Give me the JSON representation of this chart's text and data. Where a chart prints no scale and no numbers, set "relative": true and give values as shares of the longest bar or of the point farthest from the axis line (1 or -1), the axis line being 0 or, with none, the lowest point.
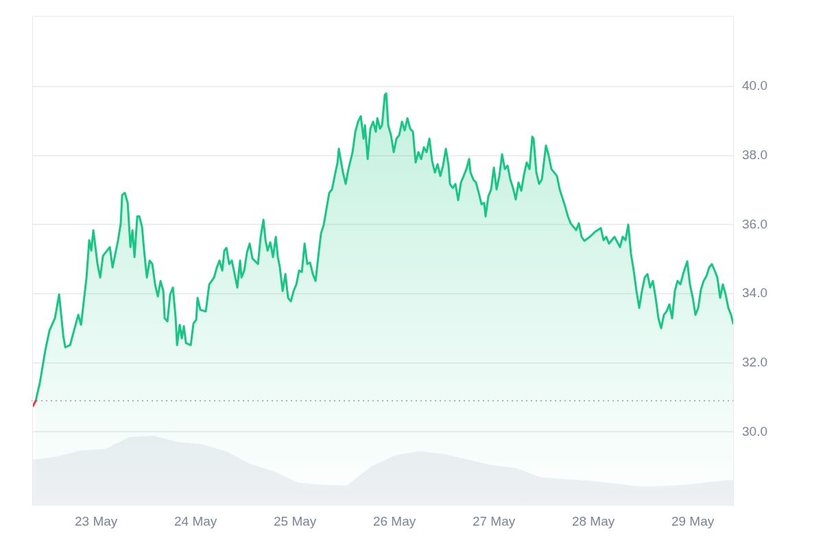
{
  "chart_data": [
    {
      "type": "area",
      "series": [
        {
          "type": "line",
          "color": "#ea3943",
          "x": [
            "--05-22T08:46",
            "--05-22T09:26"
          ],
          "values": [
            30.75,
            30.9
          ]
        },
        {
          "color": "#16c784",
          "x": [
            "--05-22T09:26",
            "--05-22T10:26",
            "--05-22T11:45",
            "--05-22T12:45",
            "--05-22T14:04",
            "--05-22T15:04",
            "--05-22T16:04",
            "--05-22T16:33",
            "--05-22T17:43",
            "--05-22T19:02",
            "--05-22T19:42",
            "--05-22T20:22",
            "--05-22T21:41",
            "--05-22T22:20",
            "--05-22T22:50",
            "--05-22T23:20",
            "--05-23T00:20",
            "--05-23T00:59",
            "--05-23T01:40",
            "--05-23T03:19",
            "--05-23T03:58",
            "--05-23T05:18",
            "--05-23T05:57",
            "--05-23T06:17",
            "--05-23T06:57",
            "--05-23T07:37",
            "--05-23T08:17",
            "--05-23T08:46",
            "--05-23T09:16",
            "--05-23T09:56",
            "--05-23T10:26",
            "--05-23T11:05",
            "--05-23T11:35",
            "--05-23T12:15",
            "--05-23T12:55",
            "--05-23T13:34",
            "--05-23T14:14",
            "--05-23T14:54",
            "--05-23T15:33",
            "--05-23T16:13",
            "--05-23T16:33",
            "--05-23T17:13",
            "--05-23T17:52",
            "--05-23T18:32",
            "--05-23T19:12",
            "--05-23T19:32",
            "--05-23T20:11",
            "--05-23T20:41",
            "--05-23T21:11",
            "--05-23T21:41",
            "--05-23T22:50",
            "--05-23T23:30",
            "--05-24T00:10",
            "--05-24T00:29",
            "--05-24T01:10",
            "--05-24T02:29",
            "--05-24T03:18",
            "--05-24T04:28",
            "--05-24T05:08",
            "--05-24T05:47",
            "--05-24T06:27",
            "--05-24T06:57",
            "--05-24T07:27",
            "--05-24T08:07",
            "--05-24T08:46",
            "--05-24T10:05",
            "--05-24T10:45",
            "--05-24T11:05",
            "--05-24T11:45",
            "--05-24T12:25",
            "--05-24T13:04",
            "--05-24T13:44",
            "--05-24T15:04",
            "--05-24T15:43",
            "--05-24T16:23",
            "--05-24T16:53",
            "--05-24T17:23",
            "--05-24T18:02",
            "--05-24T18:42",
            "--05-24T19:22",
            "--05-24T19:52",
            "--05-24T20:21",
            "--05-24T21:01",
            "--05-24T21:41",
            "--05-24T22:20",
            "--05-24T23:00",
            "--05-24T23:40",
            "--05-25T00:20",
            "--05-25T00:59",
            "--05-25T01:39",
            "--05-25T02:19",
            "--05-25T02:58",
            "--05-25T03:38",
            "--05-25T04:18",
            "--05-25T04:58",
            "--05-25T05:47",
            "--05-25T06:17",
            "--05-25T06:57",
            "--05-25T07:37",
            "--05-25T08:16",
            "--05-25T08:56",
            "--05-25T09:35",
            "--05-25T10:16",
            "--05-25T10:35",
            "--05-25T10:55",
            "--05-25T11:35",
            "--05-25T12:14",
            "--05-25T12:54",
            "--05-25T13:54",
            "--05-25T14:34",
            "--05-25T15:13",
            "--05-25T15:53",
            "--05-25T16:33",
            "--05-25T16:53",
            "--05-25T17:32",
            "--05-25T18:12",
            "--05-25T18:52",
            "--05-25T19:31",
            "--05-25T19:52",
            "--05-25T20:31",
            "--05-25T21:01",
            "--05-25T21:41",
            "--05-25T22:01",
            "--05-25T22:30",
            "--05-25T23:10",
            "--05-25T23:50",
            "--05-26T00:29",
            "--05-26T01:09",
            "--05-26T01:49",
            "--05-26T02:29",
            "--05-26T03:08",
            "--05-26T03:48",
            "--05-26T04:28",
            "--05-26T05:07",
            "--05-26T05:47",
            "--05-26T06:27",
            "--05-26T07:07",
            "--05-26T07:46",
            "--05-26T08:26",
            "--05-26T09:06",
            "--05-26T09:46",
            "--05-26T10:25",
            "--05-26T11:05",
            "--05-26T11:44",
            "--05-26T12:25",
            "--05-26T13:04",
            "--05-26T13:24",
            "--05-26T14:04",
            "--05-26T14:43",
            "--05-26T15:23",
            "--05-26T16:03",
            "--05-26T16:43",
            "--05-26T17:22",
            "--05-26T18:02",
            "--05-26T18:22",
            "--05-26T19:02",
            "--05-26T19:41",
            "--05-26T20:21",
            "--05-26T21:01",
            "--05-26T21:40",
            "--05-26T22:00",
            "--05-26T22:40",
            "--05-26T23:20",
            "--05-27T00:00",
            "--05-27T00:39",
            "--05-27T01:19",
            "--05-27T01:59",
            "--05-27T02:38",
            "--05-27T03:18",
            "--05-27T03:58",
            "--05-27T04:37",
            "--05-27T05:17",
            "--05-27T05:57",
            "--05-27T06:37",
            "--05-27T07:16",
            "--05-27T07:56",
            "--05-27T08:36",
            "--05-27T09:16",
            "--05-27T09:35",
            "--05-27T10:15",
            "--05-27T10:55",
            "--05-27T11:35",
            "--05-27T12:34",
            "--05-27T13:14",
            "--05-27T13:53",
            "--05-27T15:13",
            "--05-27T15:53",
            "--05-27T16:32",
            "--05-27T17:12",
            "--05-27T17:52",
            "--05-27T18:32",
            "--05-27T19:11",
            "--05-27T19:51",
            "--05-27T20:31",
            "--05-27T21:10",
            "--05-27T21:50",
            "--05-27T23:10",
            "--05-28T00:29",
            "--05-28T01:49",
            "--05-28T02:28",
            "--05-28T03:08",
            "--05-28T03:47",
            "--05-28T05:07",
            "--05-28T06:26",
            "--05-28T07:06",
            "--05-28T07:46",
            "--05-28T08:26",
            "--05-28T09:05",
            "--05-28T09:45",
            "--05-28T10:25",
            "--05-28T11:05",
            "--05-28T11:44",
            "--05-28T12:24",
            "--05-28T13:04",
            "--05-28T13:43",
            "--05-28T14:23",
            "--05-28T15:03",
            "--05-28T15:43",
            "--05-28T16:22",
            "--05-28T17:02",
            "--05-28T17:42",
            "--05-28T18:22",
            "--05-28T19:01",
            "--05-28T19:41",
            "--05-28T20:20",
            "--05-28T21:01",
            "--05-28T21:40",
            "--05-28T22:40",
            "--05-28T23:19",
            "--05-29T00:00",
            "--05-29T00:39",
            "--05-29T01:19",
            "--05-29T01:58",
            "--05-29T02:38",
            "--05-29T03:18",
            "--05-29T03:58",
            "--05-29T04:37",
            "--05-29T05:17",
            "--05-29T05:56",
            "--05-29T06:37",
            "--05-29T07:16",
            "--05-29T07:56",
            "--05-29T08:35",
            "--05-29T09:15",
            "--05-29T09:45"
          ],
          "values": [
            30.9,
            31.43,
            32.37,
            32.94,
            33.29,
            33.98,
            32.8,
            32.45,
            32.51,
            33.1,
            33.39,
            33.1,
            34.47,
            35.55,
            35.25,
            35.84,
            34.86,
            34.47,
            35.1,
            35.35,
            34.76,
            35.55,
            36.04,
            36.86,
            36.92,
            36.63,
            35.35,
            35.84,
            35.06,
            36.24,
            36.24,
            35.94,
            35.25,
            34.47,
            34.96,
            34.86,
            34.27,
            33.92,
            34.37,
            34.08,
            33.29,
            33.2,
            33.98,
            34.18,
            33.29,
            32.51,
            33.1,
            32.71,
            33.06,
            32.57,
            32.51,
            33.14,
            33.25,
            33.88,
            33.53,
            33.49,
            34.27,
            34.47,
            34.76,
            34.96,
            34.67,
            35.25,
            35.33,
            34.86,
            34.96,
            34.18,
            34.96,
            34.47,
            34.67,
            35.2,
            35.45,
            35.02,
            34.86,
            35.65,
            36.14,
            35.55,
            35.25,
            35.49,
            35.06,
            35.65,
            35.06,
            34.76,
            34.08,
            34.57,
            33.88,
            33.78,
            34.08,
            34.27,
            34.67,
            34.63,
            35.45,
            34.86,
            34.9,
            34.57,
            34.37,
            35.25,
            35.75,
            36.0,
            36.47,
            36.92,
            37.02,
            37.41,
            37.8,
            38.2,
            37.96,
            37.51,
            37.18,
            37.61,
            38.1,
            38.69,
            38.98,
            39.14,
            38.49,
            38.88,
            37.9,
            38.78,
            38.98,
            38.69,
            39.08,
            38.78,
            38.88,
            39.76,
            39.8,
            38.88,
            38.59,
            38.1,
            38.49,
            38.59,
            38.98,
            38.73,
            39.08,
            38.78,
            38.69,
            37.8,
            38.1,
            37.9,
            38.24,
            38.1,
            38.49,
            37.84,
            37.51,
            37.75,
            37.41,
            37.71,
            38.2,
            37.71,
            37.18,
            37.06,
            37.18,
            36.71,
            37.22,
            37.41,
            37.61,
            37.9,
            37.51,
            37.31,
            37.22,
            36.92,
            36.59,
            36.63,
            36.24,
            36.82,
            37.02,
            37.65,
            37.02,
            37.41,
            38.04,
            37.61,
            37.71,
            37.31,
            37.06,
            36.73,
            37.22,
            36.98,
            37.45,
            37.8,
            37.61,
            38.55,
            38.49,
            37.51,
            37.18,
            37.31,
            38.29,
            38.0,
            37.61,
            37.41,
            37.02,
            36.78,
            36.53,
            36.24,
            36.04,
            35.94,
            35.84,
            36.04,
            35.65,
            35.53,
            35.65,
            35.8,
            35.9,
            35.55,
            35.65,
            35.45,
            35.65,
            35.35,
            35.65,
            35.55,
            36.0,
            35.16,
            34.67,
            34.08,
            33.59,
            34.08,
            34.47,
            34.57,
            34.18,
            34.37,
            33.88,
            33.29,
            33.0,
            33.39,
            33.49,
            33.69,
            33.29,
            34.08,
            34.37,
            34.27,
            34.57,
            34.94,
            34.27,
            33.88,
            33.39,
            33.59,
            34.12,
            34.37,
            34.51,
            34.76,
            34.86,
            34.67,
            34.47,
            33.88,
            34.27,
            33.98,
            33.59,
            33.39,
            33.14
          ]
        }
      ],
      "xlim": [
        "--05-22T08:35",
        "--05-29T09:55"
      ],
      "xticks": [
        {
          "value": "--05-23",
          "label": "23 May"
        },
        {
          "value": "--05-24",
          "label": "24 May"
        },
        {
          "value": "--05-25",
          "label": "25 May"
        },
        {
          "value": "--05-26",
          "label": "26 May"
        },
        {
          "value": "--05-27",
          "label": "27 May"
        },
        {
          "value": "--05-28",
          "label": "28 May"
        },
        {
          "value": "--05-29",
          "label": "29 May"
        }
      ],
      "ylim": [
        27.86,
        42.04
      ],
      "yticks": [
        {
          "value": 30,
          "label": "30.0"
        },
        {
          "value": 32,
          "label": "32.0"
        },
        {
          "value": 34,
          "label": "34.0"
        },
        {
          "value": 36,
          "label": "36.0"
        },
        {
          "value": 38,
          "label": "38.0"
        },
        {
          "value": 40,
          "label": "40.0"
        }
      ],
      "grid": "y",
      "legend": false,
      "ref_lines": [
        {
          "axis": "y",
          "value": 30.9,
          "line_style": "dotted",
          "color": "#999999"
        }
      ]
    },
    {
      "type": "area",
      "relative": true,
      "legend": false,
      "categories": [
        null,
        null,
        null,
        null,
        null,
        null,
        null,
        null,
        null,
        null,
        null,
        null,
        null,
        null,
        null,
        null,
        null,
        null,
        null,
        null,
        null,
        null,
        null,
        null,
        null,
        null,
        null,
        null,
        null,
        null
      ],
      "series": [
        {
          "color": "#eef0f3",
          "values": [
            0.66,
            0.7,
            0.79,
            0.81,
            0.98,
            1.0,
            0.91,
            0.88,
            0.78,
            0.6,
            0.49,
            0.33,
            0.3,
            0.29,
            0.56,
            0.72,
            0.78,
            0.74,
            0.66,
            0.58,
            0.54,
            0.41,
            0.38,
            0.36,
            0.32,
            0.28,
            0.28,
            0.3,
            0.34,
            0.37
          ]
        }
      ]
    }
  ]
}
